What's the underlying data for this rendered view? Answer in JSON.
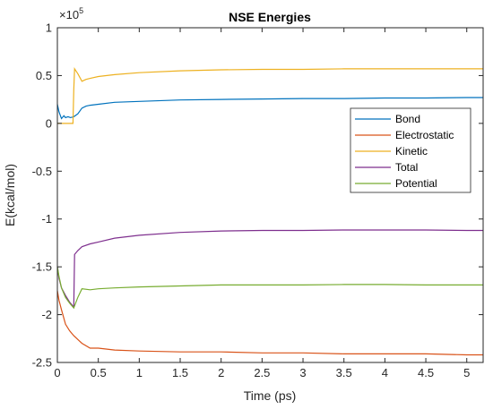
{
  "chart_data": {
    "type": "line",
    "title": "NSE Energies",
    "xlabel": "Time (ps)",
    "ylabel": "E(kcal/mol)",
    "xlim": [
      0,
      5.2
    ],
    "ylim": [
      -2.5,
      1
    ],
    "exponent_label": "×10",
    "exponent_power": "5",
    "x_ticks": [
      0,
      0.5,
      1,
      1.5,
      2,
      2.5,
      3,
      3.5,
      4,
      4.5,
      5
    ],
    "x_tick_labels": [
      "0",
      "0.5",
      "1",
      "1.5",
      "2",
      "2.5",
      "3",
      "3.5",
      "4",
      "4.5",
      "5"
    ],
    "y_ticks": [
      1,
      0.5,
      0,
      -0.5,
      -1,
      -1.5,
      -2,
      -2.5
    ],
    "y_tick_labels": [
      "1",
      "0.5",
      "0",
      "-0.5",
      "-1",
      "-1.5",
      "-2",
      "-2.5"
    ],
    "grid": false,
    "legend_position": "right",
    "series": [
      {
        "name": "Bond",
        "color": "#0072BD",
        "x": [
          0,
          0.02,
          0.05,
          0.08,
          0.1,
          0.13,
          0.16,
          0.2,
          0.25,
          0.3,
          0.35,
          0.4,
          0.5,
          0.7,
          1.0,
          1.5,
          2.0,
          2.5,
          3.0,
          3.5,
          4.0,
          4.5,
          5.0,
          5.2
        ],
        "y": [
          0.2,
          0.12,
          0.05,
          0.08,
          0.06,
          0.07,
          0.06,
          0.07,
          0.1,
          0.16,
          0.18,
          0.19,
          0.2,
          0.22,
          0.23,
          0.245,
          0.25,
          0.255,
          0.26,
          0.26,
          0.265,
          0.265,
          0.27,
          0.27
        ]
      },
      {
        "name": "Electrostatic",
        "color": "#D95319",
        "x": [
          0,
          0.02,
          0.05,
          0.1,
          0.15,
          0.2,
          0.3,
          0.4,
          0.5,
          0.7,
          1.0,
          1.5,
          2.0,
          2.5,
          3.0,
          3.5,
          4.0,
          4.5,
          5.0,
          5.2
        ],
        "y": [
          -1.75,
          -1.85,
          -1.95,
          -2.1,
          -2.17,
          -2.22,
          -2.3,
          -2.35,
          -2.35,
          -2.37,
          -2.38,
          -2.39,
          -2.39,
          -2.4,
          -2.4,
          -2.41,
          -2.41,
          -2.41,
          -2.42,
          -2.42
        ]
      },
      {
        "name": "Kinetic",
        "color": "#EDB120",
        "x": [
          0,
          0.05,
          0.1,
          0.15,
          0.19,
          0.2,
          0.21,
          0.25,
          0.3,
          0.35,
          0.4,
          0.5,
          0.7,
          1.0,
          1.5,
          2.0,
          2.5,
          3.0,
          3.5,
          4.0,
          4.5,
          5.0,
          5.2
        ],
        "y": [
          0,
          0,
          0,
          0,
          0,
          0.35,
          0.57,
          0.52,
          0.44,
          0.46,
          0.47,
          0.49,
          0.51,
          0.53,
          0.55,
          0.56,
          0.565,
          0.565,
          0.57,
          0.57,
          0.57,
          0.57,
          0.57
        ]
      },
      {
        "name": "Total",
        "color": "#7E2F8E",
        "x": [
          0,
          0.02,
          0.05,
          0.1,
          0.15,
          0.2,
          0.21,
          0.25,
          0.3,
          0.4,
          0.5,
          0.7,
          1.0,
          1.5,
          2.0,
          2.5,
          3.0,
          3.5,
          4.0,
          4.5,
          5.0,
          5.2
        ],
        "y": [
          -1.5,
          -1.62,
          -1.72,
          -1.8,
          -1.87,
          -1.92,
          -1.37,
          -1.33,
          -1.29,
          -1.26,
          -1.24,
          -1.2,
          -1.17,
          -1.14,
          -1.125,
          -1.12,
          -1.12,
          -1.115,
          -1.115,
          -1.115,
          -1.12,
          -1.12
        ]
      },
      {
        "name": "Potential",
        "color": "#77AC30",
        "x": [
          0,
          0.02,
          0.05,
          0.1,
          0.15,
          0.2,
          0.25,
          0.3,
          0.4,
          0.5,
          0.7,
          1.0,
          1.5,
          2.0,
          2.5,
          3.0,
          3.5,
          4.0,
          4.5,
          5.0,
          5.2
        ],
        "y": [
          -1.5,
          -1.6,
          -1.72,
          -1.82,
          -1.88,
          -1.93,
          -1.82,
          -1.73,
          -1.74,
          -1.73,
          -1.72,
          -1.71,
          -1.7,
          -1.69,
          -1.69,
          -1.69,
          -1.685,
          -1.685,
          -1.69,
          -1.69,
          -1.69
        ]
      }
    ]
  }
}
